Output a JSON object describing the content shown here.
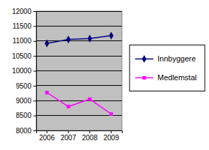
{
  "chart_data": {
    "type": "line",
    "categories": [
      "2006",
      "2007",
      "2008",
      "2009"
    ],
    "series": [
      {
        "name": "Innbyggere",
        "color": "#000080",
        "marker": "diamond",
        "values": [
          10920,
          11050,
          11080,
          11180
        ]
      },
      {
        "name": "Medlemstal",
        "color": "#ff00ff",
        "marker": "square",
        "values": [
          9270,
          8800,
          9050,
          8550
        ]
      }
    ],
    "ylim": [
      8000,
      12000
    ],
    "yticks": [
      8000,
      8500,
      9000,
      9500,
      10000,
      10500,
      11000,
      11500,
      12000
    ],
    "grid": true,
    "legend": "right"
  }
}
